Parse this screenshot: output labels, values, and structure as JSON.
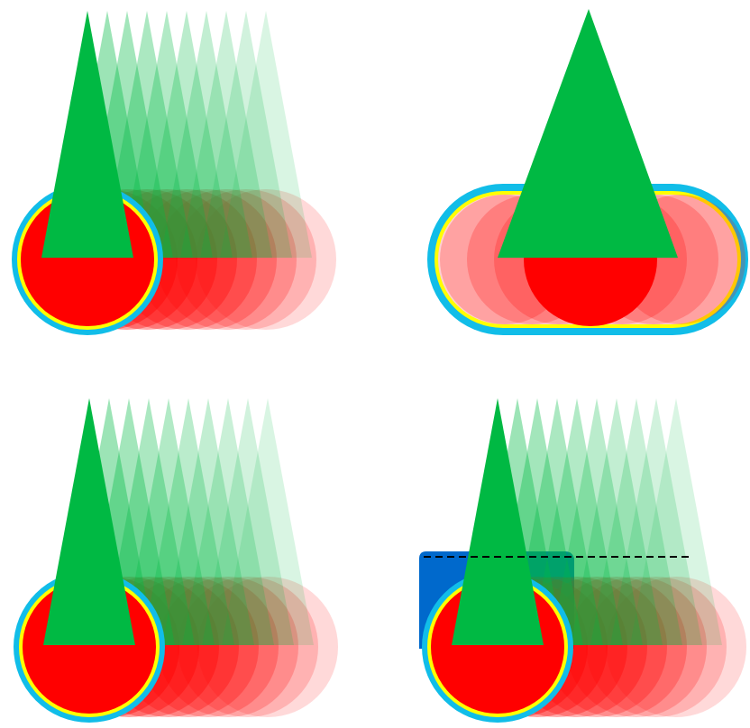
{
  "colors": {
    "background": "#ffffff",
    "triangle_green": "#00b943",
    "circle_red": "#ff0000",
    "outer_ring_blue": "#11bde8",
    "inner_ring_yellow": "#ffff00",
    "blue_box": "#0069cc",
    "dashed_line": "#000000"
  },
  "panels": [
    {
      "id": "top-left",
      "variant": "trail",
      "trail_count": 9
    },
    {
      "id": "top-right",
      "variant": "capsule",
      "trail_count": 6
    },
    {
      "id": "bottom-left",
      "variant": "trail",
      "trail_count": 9
    },
    {
      "id": "bottom-right",
      "variant": "trail-with-box-and-dashed-line",
      "trail_count": 9
    }
  ]
}
